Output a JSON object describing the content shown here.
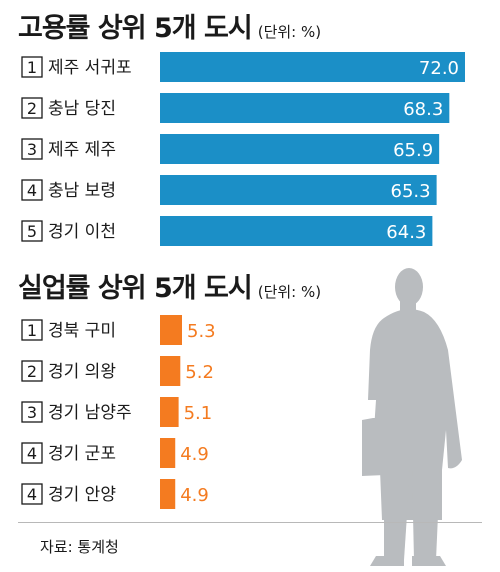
{
  "colors": {
    "employment_bar": "#1b8fc7",
    "unemployment_bar": "#f47b20",
    "unemployment_label": "#f47b20",
    "silhouette": "#b9bcbf"
  },
  "chart_data": [
    {
      "type": "bar",
      "orientation": "horizontal",
      "title": "고용률 상위 5개 도시",
      "unit_label": "(단위: %)",
      "ranks": [
        "1",
        "2",
        "3",
        "4",
        "5"
      ],
      "categories": [
        "제주 서귀포",
        "충남 당진",
        "제주 제주",
        "충남 보령",
        "경기 이천"
      ],
      "values": [
        72.0,
        68.3,
        65.9,
        65.3,
        64.3
      ],
      "value_labels": [
        "72.0",
        "68.3",
        "65.9",
        "65.3",
        "64.3"
      ],
      "legend": null,
      "grid": false
    },
    {
      "type": "bar",
      "orientation": "horizontal",
      "title": "실업률 상위 5개 도시",
      "unit_label": "(단위: %)",
      "ranks": [
        "1",
        "2",
        "3",
        "4",
        "4"
      ],
      "categories": [
        "경북 구미",
        "경기 의왕",
        "경기 남양주",
        "경기 군포",
        "경기 안양"
      ],
      "values": [
        5.3,
        5.2,
        5.1,
        4.9,
        4.9
      ],
      "value_labels": [
        "5.3",
        "5.2",
        "5.1",
        "4.9",
        "4.9"
      ],
      "legend": null,
      "grid": false
    }
  ],
  "source": "자료: 통계청"
}
